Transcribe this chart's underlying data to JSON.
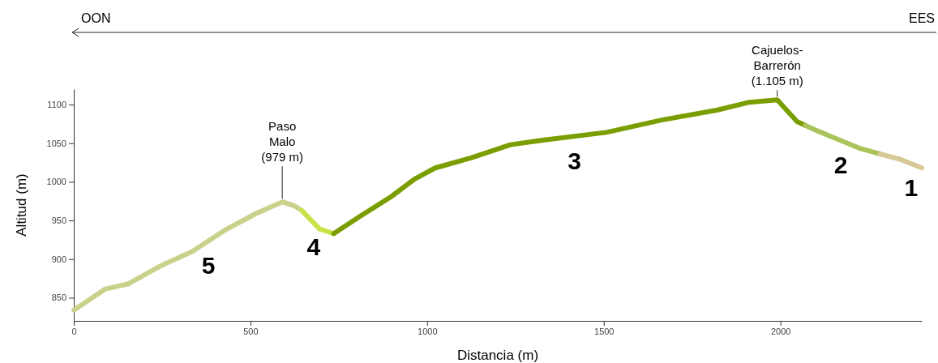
{
  "chart_data": {
    "type": "line",
    "xlabel": "Distancia (m)",
    "ylabel": "Altitud (m)",
    "xlim": [
      0,
      2400
    ],
    "ylim": [
      820,
      1120
    ],
    "xticks": [
      0,
      500,
      1000,
      1500,
      2000
    ],
    "yticks": [
      850,
      900,
      950,
      1000,
      1050,
      1100
    ],
    "grid": false,
    "marker": "none",
    "line_style": "solid",
    "series": [
      {
        "color": "#c9d18a",
        "x": [
          0,
          88,
          155,
          245,
          336,
          426,
          516,
          590,
          624,
          645
        ],
        "values": [
          834,
          861,
          868,
          891,
          910,
          937,
          959,
          974,
          969,
          963
        ]
      },
      {
        "color": "#c8e34a",
        "x": [
          645,
          662,
          696,
          736
        ],
        "values": [
          963,
          955,
          939,
          933
        ]
      },
      {
        "color": "#7a9e00",
        "x": [
          736,
          809,
          899,
          966,
          1023,
          1124,
          1236,
          1327,
          1507,
          1664,
          1822,
          1912,
          1991,
          2047,
          2070
        ],
        "values": [
          933,
          955,
          981,
          1004,
          1018,
          1031,
          1048,
          1054,
          1064,
          1080,
          1093,
          1103,
          1106,
          1078,
          1073
        ]
      },
      {
        "color": "#a9c45a",
        "x": [
          2070,
          2115,
          2227,
          2283
        ],
        "values": [
          1073,
          1064,
          1043,
          1036
        ]
      },
      {
        "color": "#d8c896",
        "x": [
          2283,
          2340,
          2400
        ],
        "values": [
          1036,
          1029,
          1018
        ]
      }
    ],
    "annotations": [
      "OON",
      "EES",
      {
        "text": "Paso\nMalo\n(979 m)",
        "x": 590,
        "y": 974
      },
      {
        "text": "Cajuelos-\nBarrerón\n(1.105 m)",
        "x": 1991,
        "y": 1106
      },
      "5",
      "4",
      "3",
      "2",
      "1"
    ]
  }
}
